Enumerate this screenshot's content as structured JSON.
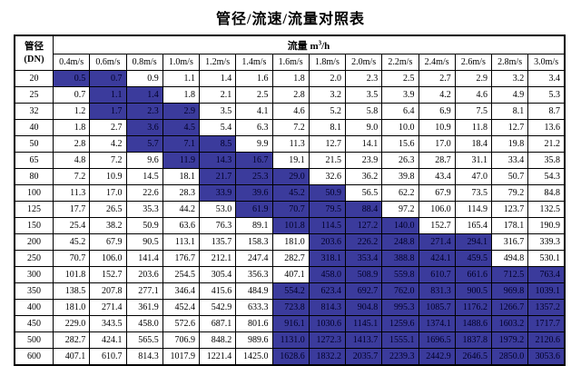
{
  "title": "管径/流速/流量对照表",
  "colors": {
    "highlight_bg": "#3b3b9c",
    "highlight_text": "#000028",
    "border": "#000000",
    "background": "#ffffff"
  },
  "table": {
    "corner_line1": "管径",
    "corner_line2": "(DN)",
    "flow_label": "流量 ",
    "flow_unit_base": "m",
    "flow_unit_sup": "3",
    "flow_unit_rest": "/h",
    "velocity_headers": [
      "0.4m/s",
      "0.6m/s",
      "0.8m/s",
      "1.0m/s",
      "1.2m/s",
      "1.4m/s",
      "1.6m/s",
      "1.8m/s",
      "2.0m/s",
      "2.2m/s",
      "2.4m/s",
      "2.6m/s",
      "2.8m/s",
      "3.0m/s"
    ],
    "rows": [
      {
        "dn": "20",
        "values": [
          "0.5",
          "0.7",
          "0.9",
          "1.1",
          "1.4",
          "1.6",
          "1.8",
          "2.0",
          "2.3",
          "2.5",
          "2.7",
          "2.9",
          "3.2",
          "3.4"
        ],
        "highlight": [
          0,
          1
        ]
      },
      {
        "dn": "25",
        "values": [
          "0.7",
          "1.1",
          "1.4",
          "1.8",
          "2.1",
          "2.5",
          "2.8",
          "3.2",
          "3.5",
          "3.9",
          "4.2",
          "4.6",
          "4.9",
          "5.3"
        ],
        "highlight": [
          1,
          2
        ]
      },
      {
        "dn": "32",
        "values": [
          "1.2",
          "1.7",
          "2.3",
          "2.9",
          "3.5",
          "4.1",
          "4.6",
          "5.2",
          "5.8",
          "6.4",
          "6.9",
          "7.5",
          "8.1",
          "8.7"
        ],
        "highlight": [
          1,
          3
        ]
      },
      {
        "dn": "40",
        "values": [
          "1.8",
          "2.7",
          "3.6",
          "4.5",
          "5.4",
          "6.3",
          "7.2",
          "8.1",
          "9.0",
          "10.0",
          "10.9",
          "11.8",
          "12.7",
          "13.6"
        ],
        "highlight": [
          2,
          3
        ]
      },
      {
        "dn": "50",
        "values": [
          "2.8",
          "4.2",
          "5.7",
          "7.1",
          "8.5",
          "9.9",
          "11.3",
          "12.7",
          "14.1",
          "15.6",
          "17.0",
          "18.4",
          "19.8",
          "21.2"
        ],
        "highlight": [
          2,
          4
        ]
      },
      {
        "dn": "65",
        "values": [
          "4.8",
          "7.2",
          "9.6",
          "11.9",
          "14.3",
          "16.7",
          "19.1",
          "21.5",
          "23.9",
          "26.3",
          "28.7",
          "31.1",
          "33.4",
          "35.8"
        ],
        "highlight": [
          3,
          5
        ]
      },
      {
        "dn": "80",
        "values": [
          "7.2",
          "10.9",
          "14.5",
          "18.1",
          "21.7",
          "25.3",
          "29.0",
          "32.6",
          "36.2",
          "39.8",
          "43.4",
          "47.0",
          "50.7",
          "54.3"
        ],
        "highlight": [
          4,
          6
        ]
      },
      {
        "dn": "100",
        "values": [
          "11.3",
          "17.0",
          "22.6",
          "28.3",
          "33.9",
          "39.6",
          "45.2",
          "50.9",
          "56.5",
          "62.2",
          "67.9",
          "73.5",
          "79.2",
          "84.8"
        ],
        "highlight": [
          4,
          7
        ]
      },
      {
        "dn": "125",
        "values": [
          "17.7",
          "26.5",
          "35.3",
          "44.2",
          "53.0",
          "61.9",
          "70.7",
          "79.5",
          "88.4",
          "97.2",
          "106.0",
          "114.9",
          "123.7",
          "132.5"
        ],
        "highlight": [
          5,
          8
        ]
      },
      {
        "dn": "150",
        "values": [
          "25.4",
          "38.2",
          "50.9",
          "63.6",
          "76.3",
          "89.1",
          "101.8",
          "114.5",
          "127.2",
          "140.0",
          "152.7",
          "165.4",
          "178.1",
          "190.9"
        ],
        "highlight": [
          6,
          9
        ]
      },
      {
        "dn": "200",
        "values": [
          "45.2",
          "67.9",
          "90.5",
          "113.1",
          "135.7",
          "158.3",
          "181.0",
          "203.6",
          "226.2",
          "248.8",
          "271.4",
          "294.1",
          "316.7",
          "339.3"
        ],
        "highlight": [
          7,
          11
        ]
      },
      {
        "dn": "250",
        "values": [
          "70.7",
          "106.0",
          "141.4",
          "176.7",
          "212.1",
          "247.4",
          "282.7",
          "318.1",
          "353.4",
          "388.8",
          "424.1",
          "459.5",
          "494.8",
          "530.1"
        ],
        "highlight": [
          7,
          11
        ]
      },
      {
        "dn": "300",
        "values": [
          "101.8",
          "152.7",
          "203.6",
          "254.5",
          "305.4",
          "356.3",
          "407.1",
          "458.0",
          "508.9",
          "559.8",
          "610.7",
          "661.6",
          "712.5",
          "763.4"
        ],
        "highlight": [
          7,
          13
        ]
      },
      {
        "dn": "350",
        "values": [
          "138.5",
          "207.8",
          "277.1",
          "346.4",
          "415.6",
          "484.9",
          "554.2",
          "623.4",
          "692.7",
          "762.0",
          "831.3",
          "900.5",
          "969.8",
          "1039.1"
        ],
        "highlight": [
          6,
          13
        ]
      },
      {
        "dn": "400",
        "values": [
          "181.0",
          "271.4",
          "361.9",
          "452.4",
          "542.9",
          "633.3",
          "723.8",
          "814.3",
          "904.8",
          "995.3",
          "1085.7",
          "1176.2",
          "1266.7",
          "1357.2"
        ],
        "highlight": [
          6,
          13
        ]
      },
      {
        "dn": "450",
        "values": [
          "229.0",
          "343.5",
          "458.0",
          "572.6",
          "687.1",
          "801.6",
          "916.1",
          "1030.6",
          "1145.1",
          "1259.6",
          "1374.1",
          "1488.6",
          "1603.2",
          "1717.7"
        ],
        "highlight": [
          6,
          13
        ]
      },
      {
        "dn": "500",
        "values": [
          "282.7",
          "424.1",
          "565.5",
          "706.9",
          "848.2",
          "989.6",
          "1131.0",
          "1272.3",
          "1413.7",
          "1555.1",
          "1696.5",
          "1837.8",
          "1979.2",
          "2120.6"
        ],
        "highlight": [
          6,
          13
        ]
      },
      {
        "dn": "600",
        "values": [
          "407.1",
          "610.7",
          "814.3",
          "1017.9",
          "1221.4",
          "1425.0",
          "1628.6",
          "1832.2",
          "2035.7",
          "2239.3",
          "2442.9",
          "2646.5",
          "2850.0",
          "3053.6"
        ],
        "highlight": [
          6,
          13
        ]
      }
    ]
  }
}
